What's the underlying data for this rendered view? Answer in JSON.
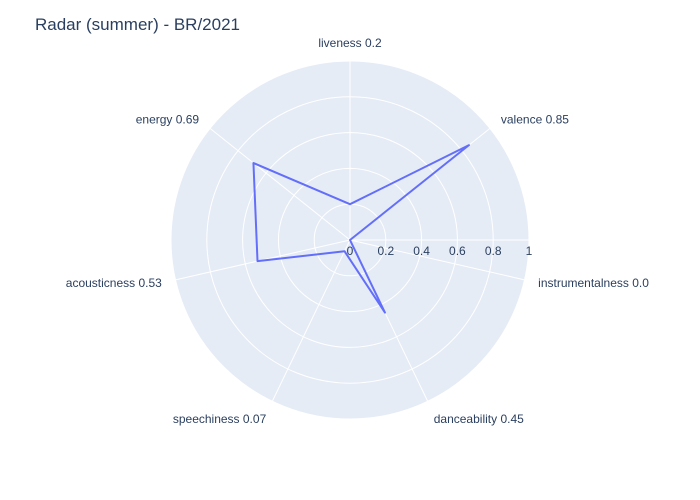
{
  "chart_data": {
    "type": "radar",
    "title": "Radar (summer) - BR/2021",
    "axes": [
      {
        "label": "liveness 0.2",
        "value": 0.2
      },
      {
        "label": "valence 0.85",
        "value": 0.85
      },
      {
        "label": "instrumentalness 0.0",
        "value": 0.0
      },
      {
        "label": "danceability 0.45",
        "value": 0.45
      },
      {
        "label": "speechiness 0.07",
        "value": 0.07
      },
      {
        "label": "acousticness 0.53",
        "value": 0.53
      },
      {
        "label": "energy 0.69",
        "value": 0.69
      }
    ],
    "radial_ticks": [
      "0",
      "0.2",
      "0.4",
      "0.6",
      "0.8",
      "1"
    ],
    "radial_range": [
      0,
      1
    ],
    "grid": true,
    "legend": false,
    "colors": {
      "polar_bg": "#e5ecf6",
      "grid": "#ffffff",
      "line": "#636efa",
      "text": "#2a3f5f"
    }
  }
}
